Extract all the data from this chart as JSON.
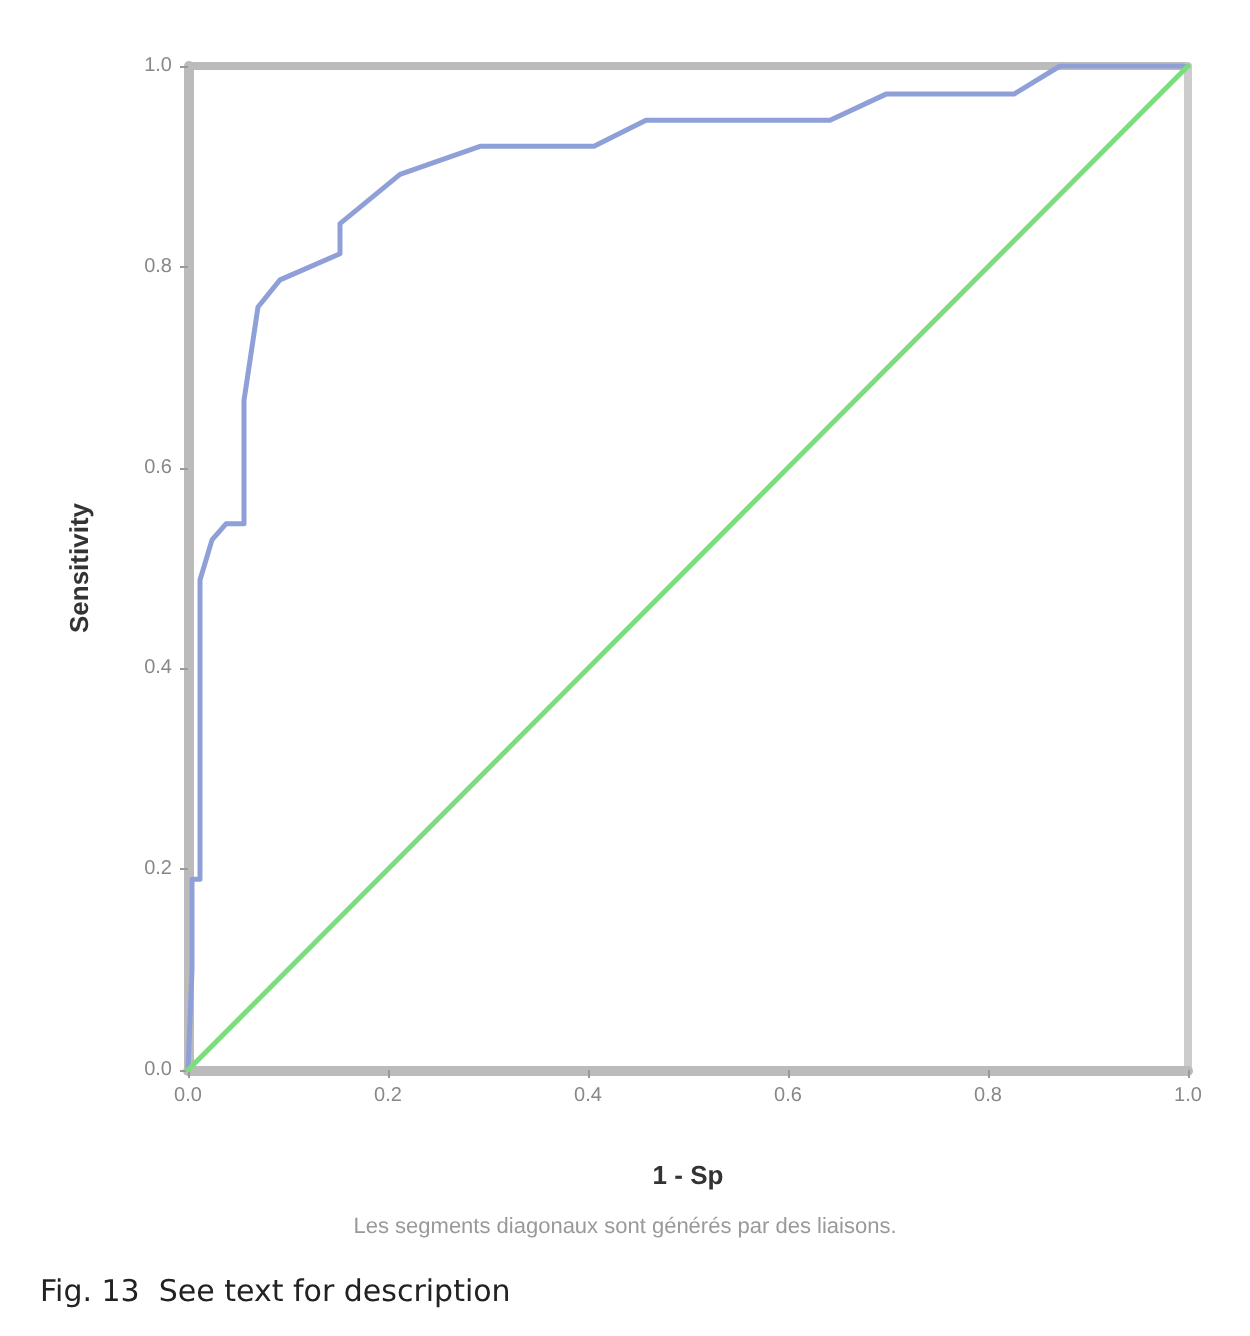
{
  "chart_data": {
    "type": "line",
    "xlabel": "1 - Sp",
    "ylabel": "Sensitivity",
    "annotations": [
      "Les segments diagonaux sont générés par des liaisons.",
      "Fig. 13  See text for description"
    ],
    "series": [
      {
        "color": "#8fa0d8",
        "x": [
          0,
          0.004,
          0.004,
          0.012,
          0.012,
          0.024,
          0.038,
          0.056,
          0.056,
          0.07,
          0.092,
          0.152,
          0.152,
          0.212,
          0.292,
          0.406,
          0.458,
          0.642,
          0.698,
          0.826,
          0.872,
          1.0
        ],
        "values": [
          0,
          0.1,
          0.19,
          0.19,
          0.488,
          0.528,
          0.544,
          0.544,
          0.667,
          0.76,
          0.787,
          0.813,
          0.843,
          0.892,
          0.92,
          0.92,
          0.946,
          0.946,
          0.972,
          0.972,
          1.0,
          1.0
        ]
      },
      {
        "color": "#7ddc7d",
        "x": [
          0,
          1
        ],
        "values": [
          0,
          1
        ]
      }
    ],
    "xlim": [
      0,
      1
    ],
    "ylim": [
      0,
      1
    ],
    "xticks": [
      {
        "value": 0,
        "label": "0.0"
      },
      0.2,
      0.4,
      0.6,
      0.8,
      {
        "value": 1,
        "label": "1.0"
      }
    ],
    "yticks": [
      {
        "value": 0,
        "label": "0.0"
      },
      0.2,
      0.4,
      0.6,
      0.8,
      {
        "value": 1,
        "label": "1.0"
      }
    ],
    "grid": false,
    "marker": "none",
    "line_style": "solid"
  }
}
